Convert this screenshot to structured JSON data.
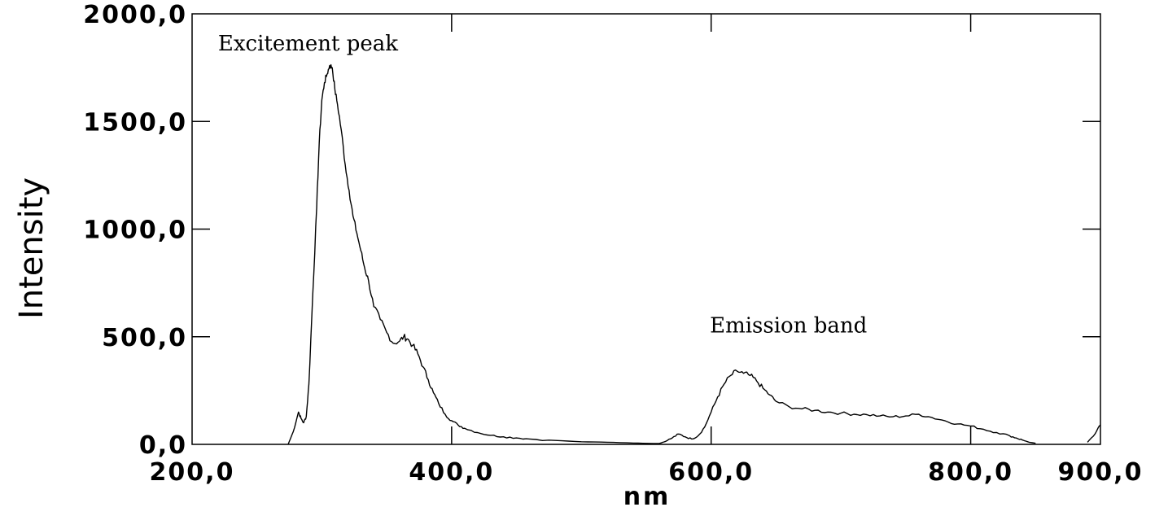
{
  "chart_data": {
    "type": "line",
    "title": "",
    "xlabel": "nm",
    "ylabel": "Intensity",
    "xlim": [
      200,
      900
    ],
    "ylim": [
      0,
      2000
    ],
    "grid": false,
    "legend": "none",
    "x_ticks": [
      200,
      400,
      600,
      800,
      900
    ],
    "x_tick_labels": [
      "200,0",
      "400,0",
      "600,0",
      "800,0",
      "900,0"
    ],
    "y_ticks": [
      0,
      500,
      1000,
      1500,
      2000
    ],
    "y_tick_labels": [
      "0,0",
      "500,0",
      "1000,0",
      "1500,0",
      "2000,0"
    ],
    "annotations": [
      {
        "text": "Excitement peak",
        "x": 220,
        "y": 1830
      },
      {
        "text": "Emission band",
        "x": 599,
        "y": 520
      }
    ],
    "series": [
      {
        "color": "#000000",
        "x": [
          274,
          278,
          282,
          284,
          286,
          288,
          290,
          293,
          296,
          298,
          300,
          302,
          304,
          306,
          308,
          310,
          312,
          315,
          318,
          321,
          324,
          327,
          330,
          333,
          336,
          340,
          345,
          350,
          355,
          360,
          363,
          366,
          370,
          374,
          378,
          382,
          386,
          390,
          395,
          400,
          405,
          410,
          420,
          430,
          440,
          450,
          460,
          480,
          500,
          520,
          540,
          555,
          560,
          565,
          570,
          575,
          580,
          585,
          590,
          595,
          600,
          605,
          610,
          615,
          620,
          625,
          630,
          635,
          640,
          645,
          650,
          660,
          670,
          680,
          690,
          700,
          710,
          720,
          730,
          740,
          750,
          760,
          770,
          780,
          790,
          800,
          810,
          820,
          830,
          835,
          840,
          845,
          850
        ],
        "y": [
          0,
          60,
          150,
          120,
          100,
          130,
          280,
          700,
          1100,
          1400,
          1600,
          1680,
          1720,
          1760,
          1750,
          1650,
          1580,
          1460,
          1300,
          1180,
          1060,
          980,
          900,
          820,
          760,
          640,
          580,
          520,
          470,
          480,
          500,
          490,
          460,
          420,
          360,
          300,
          240,
          190,
          140,
          110,
          90,
          75,
          55,
          42,
          35,
          30,
          25,
          18,
          12,
          10,
          6,
          4,
          4,
          14,
          30,
          48,
          35,
          25,
          40,
          80,
          150,
          220,
          280,
          320,
          340,
          330,
          320,
          295,
          260,
          230,
          200,
          175,
          165,
          158,
          150,
          145,
          140,
          138,
          132,
          128,
          132,
          140,
          125,
          110,
          95,
          85,
          70,
          55,
          40,
          30,
          20,
          10,
          5
        ]
      },
      {
        "color": "#000000",
        "x": [
          890,
          896,
          900
        ],
        "y": [
          10,
          50,
          90
        ]
      }
    ]
  }
}
